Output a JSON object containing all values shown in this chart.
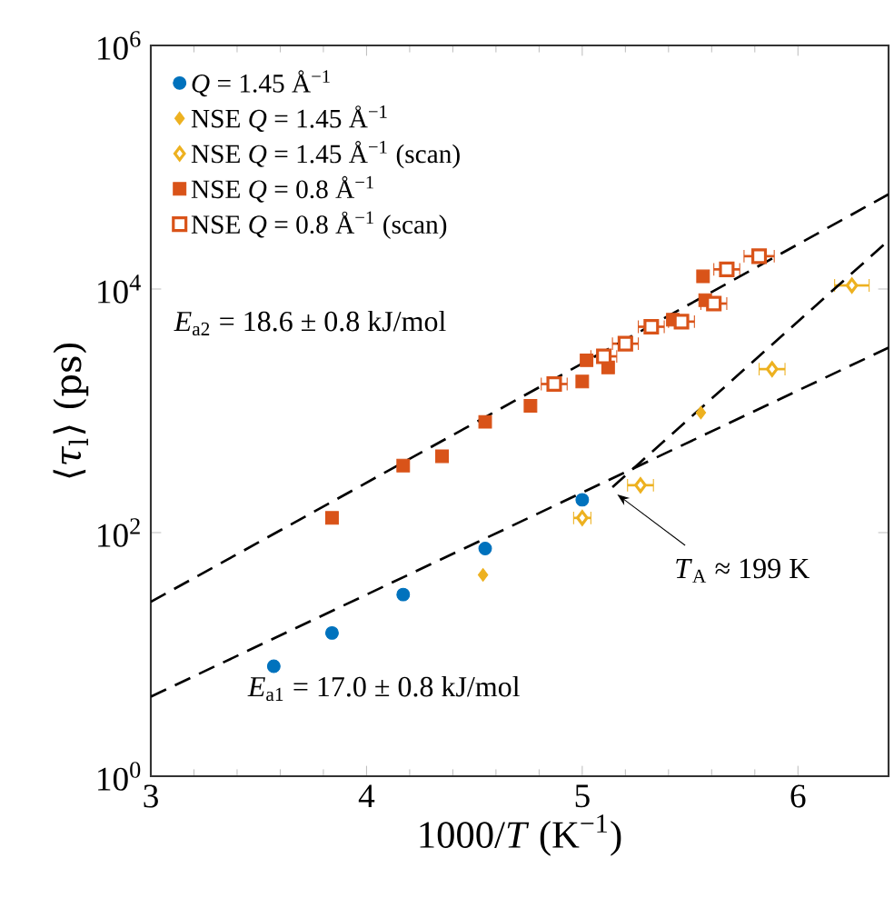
{
  "chart_data": {
    "type": "scatter",
    "xlabel": "1000/*T* (K$^{−1}$)",
    "ylabel": "⟨*τ*$_{l}$⟩ (ps)",
    "xlim": [
      3,
      6.42
    ],
    "xticks": [
      3,
      4,
      5,
      6
    ],
    "ylim": [
      1,
      1000000
    ],
    "yticks": [
      {
        "value": 1,
        "label": "10$^{0}$"
      },
      {
        "value": 100,
        "label": "10$^{2}$"
      },
      {
        "value": 10000,
        "label": "10$^{4}$"
      },
      {
        "value": 1000000,
        "label": "10$^{6}$"
      }
    ],
    "log": "y",
    "grid": false,
    "legend": "top left",
    "series": [
      {
        "name": "*Q* = 1.45 Å$^{−1}$",
        "marker": "circle",
        "color": "#0072bd",
        "x": [
          3.57,
          3.84,
          4.17,
          4.55,
          5.0
        ],
        "values": [
          8,
          15,
          31,
          74,
          186
        ]
      },
      {
        "name": "NSE *Q* = 1.45 Å$^{−1}$",
        "marker": "diamond",
        "color": "#edb120",
        "x": [
          4.54,
          5.55
        ],
        "values": [
          45,
          966
        ]
      },
      {
        "name": "NSE *Q* = 1.45 Å$^{−1}$ (scan)",
        "marker": "diamond",
        "color": "#edb120",
        "x": [
          5.0,
          5.27,
          5.88,
          6.25
        ],
        "values": [
          132,
          245,
          2200,
          10700
        ],
        "xerrors": [
          0.04,
          0.06,
          0.06,
          0.08
        ]
      },
      {
        "name": "NSE *Q* = 0.8 Å$^{−1}$",
        "marker": "square",
        "color": "#d95319",
        "x": [
          3.84,
          4.17,
          4.35,
          4.55,
          4.76,
          5.0,
          5.02,
          5.12,
          5.42,
          5.56,
          5.57
        ],
        "values": [
          132,
          355,
          424,
          812,
          1100,
          1740,
          2600,
          2270,
          5600,
          12700,
          8100
        ]
      },
      {
        "name": "NSE *Q* = 0.8 Å$^{−1}$ (scan)",
        "marker": "square",
        "color": "#d95319",
        "x": [
          4.87,
          5.1,
          5.2,
          5.32,
          5.46,
          5.61,
          5.67,
          5.82
        ],
        "values": [
          1660,
          2800,
          3560,
          4900,
          5400,
          7600,
          14500,
          18600
        ],
        "xerrors": [
          0.06,
          0.06,
          0.06,
          0.06,
          0.06,
          0.06,
          0.06,
          0.07
        ]
      },
      {
        "type": "line",
        "line_style": "dashed",
        "color": "#000000",
        "x": [
          3,
          6.42
        ],
        "values": [
          27,
          60000
        ]
      },
      {
        "type": "line",
        "line_style": "dashed",
        "color": "#000000",
        "x": [
          3,
          6.42
        ],
        "values": [
          4.5,
          3300
        ]
      },
      {
        "type": "line",
        "line_style": "dashed",
        "color": "#000000",
        "x": [
          5.14,
          6.42
        ],
        "values": [
          236,
          25000
        ]
      }
    ],
    "annotations": [
      "*E*$_{a2}$ = 18.6 ± 0.8 kJ/mol",
      "*E*$_{a1}$ = 17.0 ± 0.8 kJ/mol",
      {
        "text": "*T*$_{A}$ ≈ 199 K",
        "x": 5.14,
        "y": 236
      }
    ]
  }
}
